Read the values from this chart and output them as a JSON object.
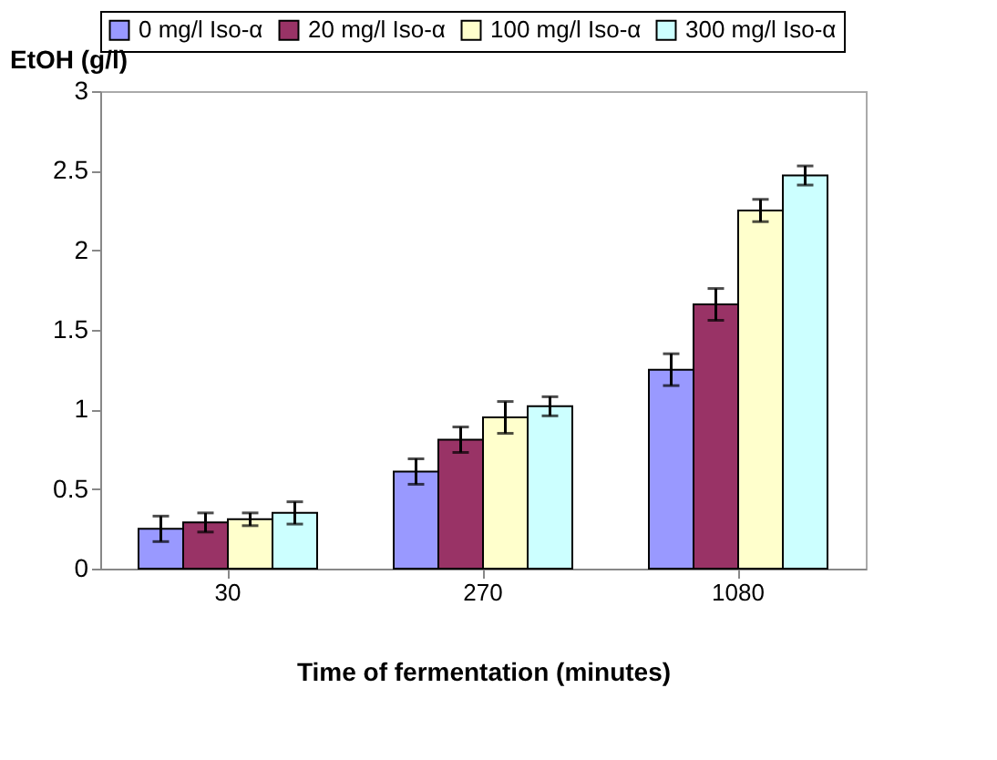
{
  "chart_data": {
    "type": "bar",
    "xlabel": "Time of fermentation (minutes)",
    "ylabel": "EtOH (g/l)",
    "categories": [
      "30",
      "270",
      "1080"
    ],
    "series": [
      {
        "name": "0 mg/l Iso-α",
        "color": "#9999ff",
        "values": [
          0.25,
          0.61,
          1.25
        ],
        "errors": [
          0.08,
          0.08,
          0.1
        ]
      },
      {
        "name": "20 mg/l Iso-α",
        "color": "#993366",
        "values": [
          0.29,
          0.81,
          1.66
        ],
        "errors": [
          0.06,
          0.08,
          0.1
        ]
      },
      {
        "name": "100 mg/l Iso-α",
        "color": "#ffffcc",
        "values": [
          0.31,
          0.95,
          2.25
        ],
        "errors": [
          0.04,
          0.1,
          0.07
        ]
      },
      {
        "name": "300 mg/l Iso-α",
        "color": "#ccffff",
        "values": [
          0.35,
          1.02,
          2.47
        ],
        "errors": [
          0.07,
          0.06,
          0.06
        ]
      }
    ],
    "ylim": [
      0,
      3
    ],
    "yticks": [
      0,
      0.5,
      1,
      1.5,
      2,
      2.5,
      3
    ],
    "grid": false,
    "legend": "top"
  }
}
